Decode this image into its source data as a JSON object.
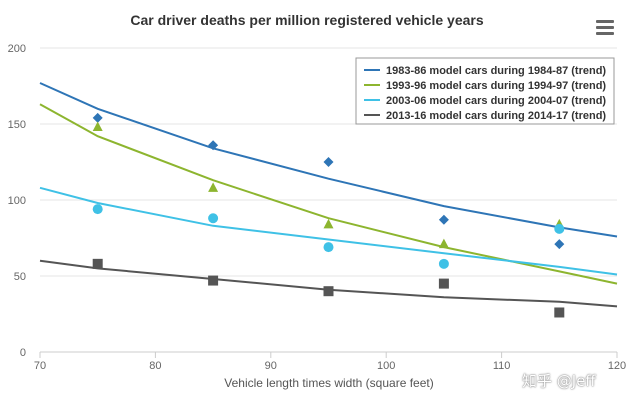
{
  "chart_data": {
    "type": "scatter",
    "title": "Car driver deaths per million registered vehicle years",
    "xlabel": "Vehicle length times width (square feet)",
    "ylabel": "",
    "xlim": [
      70,
      120
    ],
    "ylim": [
      0,
      200
    ],
    "x_ticks": [
      "70",
      "80",
      "90",
      "100",
      "110",
      "120"
    ],
    "y_ticks": [
      "0",
      "50",
      "100",
      "150",
      "200"
    ],
    "grid": true,
    "legend_position": "top-right",
    "series": [
      {
        "name": "1983-86 model cars during 1984-87 (trend)",
        "color": "#2e75b6",
        "marker": "diamond",
        "points": {
          "x": [
            75,
            85,
            95,
            105,
            115
          ],
          "y": [
            154,
            136,
            125,
            87,
            71
          ]
        },
        "trend": {
          "x": [
            70,
            75,
            85,
            95,
            105,
            115,
            120
          ],
          "y": [
            177,
            160,
            134,
            114,
            96,
            82,
            76
          ]
        }
      },
      {
        "name": "1993-96 model cars during 1994-97 (trend)",
        "color": "#8db52f",
        "marker": "triangle",
        "points": {
          "x": [
            75,
            85,
            95,
            105,
            115
          ],
          "y": [
            148,
            108,
            84,
            71,
            84
          ]
        },
        "trend": {
          "x": [
            70,
            75,
            85,
            95,
            105,
            115,
            120
          ],
          "y": [
            163,
            142,
            113,
            88,
            69,
            53,
            45
          ]
        }
      },
      {
        "name": "2003-06 model cars during 2004-07 (trend)",
        "color": "#3fc1e6",
        "marker": "circle",
        "points": {
          "x": [
            75,
            85,
            95,
            105,
            115
          ],
          "y": [
            94,
            88,
            69,
            58,
            81
          ]
        },
        "trend": {
          "x": [
            70,
            75,
            85,
            95,
            105,
            115,
            120
          ],
          "y": [
            108,
            98,
            83,
            74,
            65,
            56,
            51
          ]
        }
      },
      {
        "name": "2013-16 model cars during 2014-17 (trend)",
        "color": "#555555",
        "marker": "square",
        "points": {
          "x": [
            75,
            85,
            95,
            105,
            115
          ],
          "y": [
            58,
            47,
            40,
            45,
            26
          ]
        },
        "trend": {
          "x": [
            70,
            75,
            85,
            95,
            105,
            115,
            120
          ],
          "y": [
            60,
            55,
            48,
            41,
            36,
            33,
            30
          ]
        }
      }
    ]
  },
  "menu_icon": "hamburger-menu-icon",
  "watermark": "知乎 @Jeff"
}
